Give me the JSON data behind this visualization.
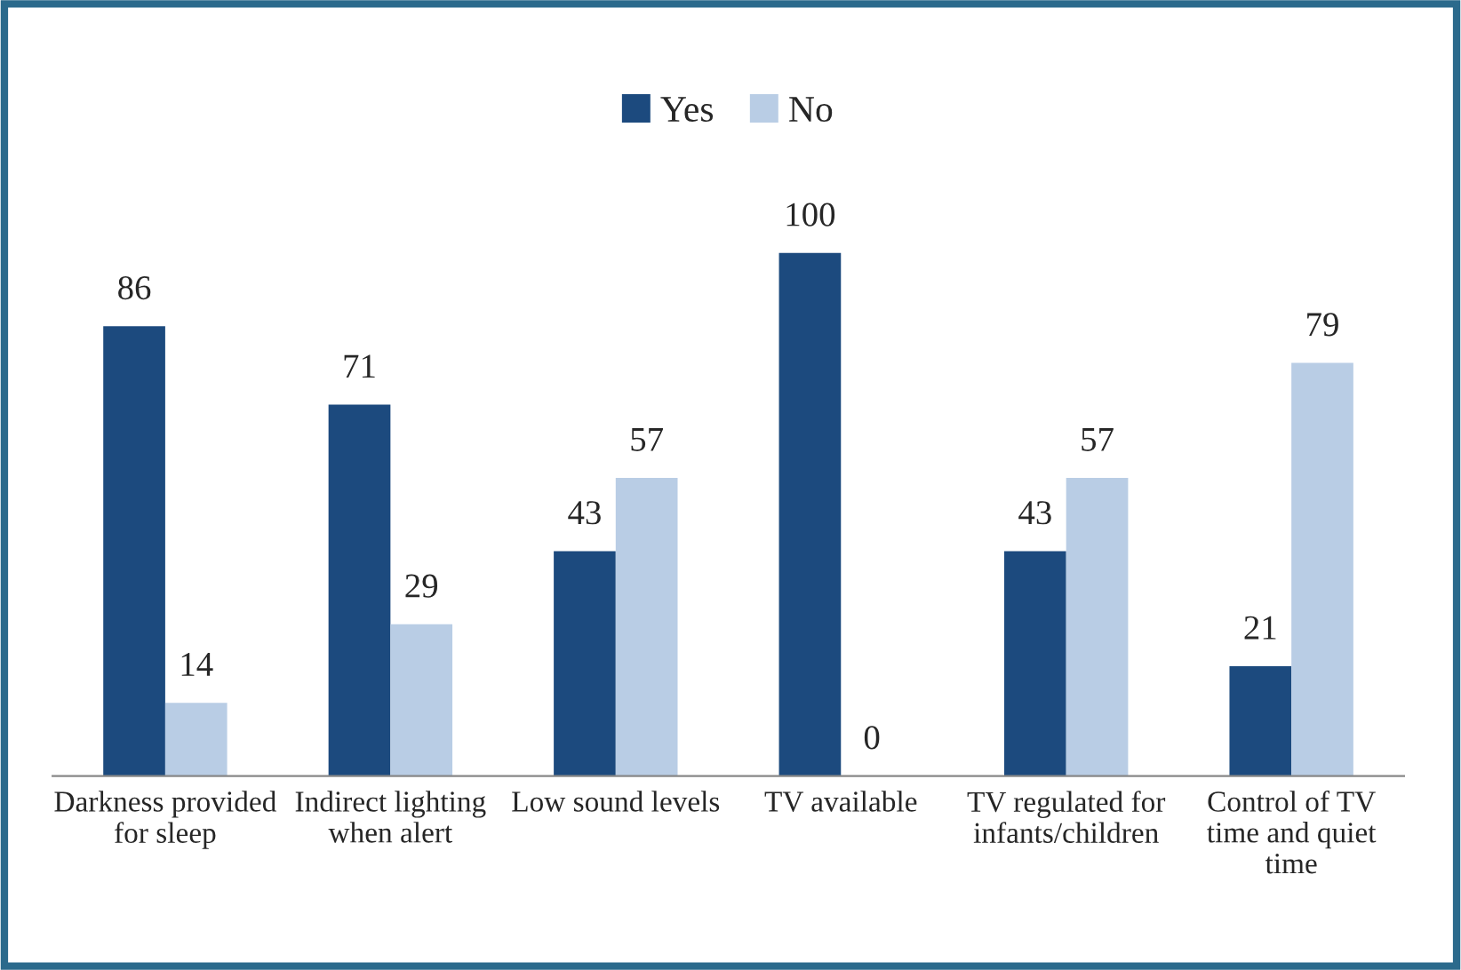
{
  "chart_data": {
    "type": "bar",
    "categories": [
      "Darkness provided for sleep",
      "Indirect lighting when alert",
      "Low sound levels",
      "TV available",
      "TV regulated for infants/children",
      "Control of TV time and quiet time"
    ],
    "series": [
      {
        "name": "Yes",
        "color": "#1c4a7e",
        "values": [
          86,
          71,
          43,
          100,
          43,
          21
        ]
      },
      {
        "name": "No",
        "color": "#b9cde5",
        "values": [
          14,
          29,
          57,
          0,
          57,
          79
        ]
      }
    ],
    "data_labels": true,
    "legend": "top",
    "grid": false,
    "tick_labels": "x"
  }
}
